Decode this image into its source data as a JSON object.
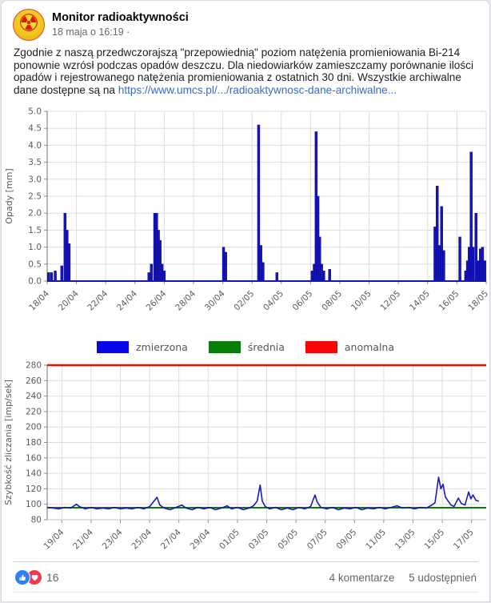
{
  "post": {
    "author": "Monitor radioaktywności",
    "timestamp": "18 maja o 16:19 ·",
    "body": "Zgodnie z naszą przedwczorajszą \"przepowiednią\" poziom natężenia promieniowania Bi-214 ponownie wzrósł podczas opadów deszczu. Dla niedowiarków zamieszczamy porównanie ilości opadów i rejestrowanego natężenia promieniowania z ostatnich 30 dni. Wszystkie archiwalne dane dostępne są na ",
    "link_text": "https://www.umcs.pl/.../radioaktywnosc-dane-archiwalne..."
  },
  "footer": {
    "reactions_count": "16",
    "comments_label": "4 komentarze",
    "shares_label": "5 udostępnień"
  },
  "icons": {
    "avatar_glyph": "☢"
  },
  "legend": {
    "items": [
      {
        "label": "zmierzona",
        "color": "#0606e8"
      },
      {
        "label": "średnia",
        "color": "#067d06"
      },
      {
        "label": "anomalna",
        "color": "#f80606"
      }
    ]
  },
  "chart_data": [
    {
      "type": "bar",
      "title": "",
      "xlabel": "",
      "ylabel": "Opady [mm]",
      "ylim": [
        0,
        5
      ],
      "ytick_labels": [
        "0.0",
        "0.5",
        "1.0",
        "1.5",
        "2.0",
        "2.5",
        "3.0",
        "3.5",
        "4.0",
        "4.5",
        "5.0"
      ],
      "xlim_days": [
        0,
        30
      ],
      "xticks": [
        {
          "d": 0,
          "l": "18/04"
        },
        {
          "d": 2,
          "l": "20/04"
        },
        {
          "d": 4,
          "l": "22/04"
        },
        {
          "d": 6,
          "l": "24/04"
        },
        {
          "d": 8,
          "l": "26/04"
        },
        {
          "d": 10,
          "l": "28/04"
        },
        {
          "d": 12,
          "l": "30/04"
        },
        {
          "d": 14,
          "l": "02/05"
        },
        {
          "d": 16,
          "l": "04/05"
        },
        {
          "d": 18,
          "l": "06/05"
        },
        {
          "d": 20,
          "l": "08/05"
        },
        {
          "d": 22,
          "l": "10/05"
        },
        {
          "d": 24,
          "l": "12/05"
        },
        {
          "d": 26,
          "l": "14/05"
        },
        {
          "d": 28,
          "l": "16/05"
        },
        {
          "d": 30,
          "l": "18/05"
        }
      ],
      "bar_color": "#1414b8",
      "grid": true,
      "bars": [
        [
          0.1,
          0.25
        ],
        [
          0.3,
          0.25
        ],
        [
          0.55,
          0.3
        ],
        [
          1.0,
          0.45
        ],
        [
          1.22,
          2.0
        ],
        [
          1.36,
          1.5
        ],
        [
          1.5,
          1.1
        ],
        [
          6.95,
          0.25
        ],
        [
          7.12,
          0.5
        ],
        [
          7.35,
          2.0
        ],
        [
          7.48,
          2.0
        ],
        [
          7.6,
          1.5
        ],
        [
          7.72,
          1.2
        ],
        [
          7.85,
          0.5
        ],
        [
          8.0,
          0.3
        ],
        [
          12.05,
          1.0
        ],
        [
          12.2,
          0.85
        ],
        [
          14.45,
          4.6
        ],
        [
          14.6,
          1.05
        ],
        [
          14.75,
          0.55
        ],
        [
          15.7,
          0.25
        ],
        [
          18.1,
          0.3
        ],
        [
          18.25,
          0.5
        ],
        [
          18.38,
          4.4
        ],
        [
          18.5,
          2.5
        ],
        [
          18.62,
          1.3
        ],
        [
          18.75,
          0.5
        ],
        [
          18.9,
          0.3
        ],
        [
          19.3,
          0.35
        ],
        [
          26.5,
          1.6
        ],
        [
          26.65,
          2.8
        ],
        [
          26.8,
          1.05
        ],
        [
          26.95,
          2.2
        ],
        [
          27.1,
          0.9
        ],
        [
          28.2,
          1.3
        ],
        [
          28.6,
          0.3
        ],
        [
          28.72,
          0.6
        ],
        [
          28.84,
          1.0
        ],
        [
          28.97,
          3.8
        ],
        [
          29.1,
          1.0
        ],
        [
          29.3,
          2.0
        ],
        [
          29.45,
          0.6
        ],
        [
          29.6,
          0.95
        ],
        [
          29.75,
          1.0
        ],
        [
          29.9,
          0.6
        ]
      ]
    },
    {
      "type": "line",
      "title": "",
      "xlabel": "",
      "ylabel": "Szybkość zliczania [imp/sek]",
      "ylim": [
        80,
        280
      ],
      "ytick_labels": [
        "80",
        "100",
        "120",
        "140",
        "160",
        "180",
        "200",
        "220",
        "240",
        "260",
        "280"
      ],
      "xlim_days": [
        0,
        30
      ],
      "xticks": [
        {
          "d": 1,
          "l": "19/04"
        },
        {
          "d": 3,
          "l": "21/04"
        },
        {
          "d": 5,
          "l": "23/04"
        },
        {
          "d": 7,
          "l": "25/04"
        },
        {
          "d": 9,
          "l": "27/04"
        },
        {
          "d": 11,
          "l": "29/04"
        },
        {
          "d": 13,
          "l": "01/05"
        },
        {
          "d": 15,
          "l": "03/05"
        },
        {
          "d": 17,
          "l": "05/05"
        },
        {
          "d": 19,
          "l": "07/05"
        },
        {
          "d": 21,
          "l": "09/05"
        },
        {
          "d": 23,
          "l": "11/05"
        },
        {
          "d": 25,
          "l": "13/05"
        },
        {
          "d": 27,
          "l": "15/05"
        },
        {
          "d": 29,
          "l": "17/05"
        }
      ],
      "grid": true,
      "series": [
        {
          "name": "anomalna",
          "color": "#f80606",
          "width": 2.4,
          "points": [
            [
              0,
              280
            ],
            [
              30,
              280
            ]
          ]
        },
        {
          "name": "średnia",
          "color": "#067d06",
          "width": 2.0,
          "points": [
            [
              0,
              95.5
            ],
            [
              30,
              95.5
            ]
          ]
        },
        {
          "name": "zmierzona",
          "color": "#1a1ab8",
          "width": 1.6,
          "points": [
            [
              0,
              96
            ],
            [
              0.4,
              95
            ],
            [
              0.8,
              94
            ],
            [
              1.2,
              96
            ],
            [
              1.6,
              95
            ],
            [
              2.0,
              100
            ],
            [
              2.2,
              97
            ],
            [
              2.6,
              94
            ],
            [
              3.0,
              96
            ],
            [
              3.4,
              94
            ],
            [
              3.8,
              95
            ],
            [
              4.2,
              94
            ],
            [
              4.6,
              96
            ],
            [
              5.0,
              94
            ],
            [
              5.4,
              95
            ],
            [
              5.8,
              94
            ],
            [
              6.2,
              96
            ],
            [
              6.6,
              94
            ],
            [
              7.0,
              97
            ],
            [
              7.3,
              104
            ],
            [
              7.5,
              109
            ],
            [
              7.7,
              99
            ],
            [
              8.0,
              95
            ],
            [
              8.4,
              93
            ],
            [
              8.8,
              96
            ],
            [
              9.2,
              99
            ],
            [
              9.5,
              95
            ],
            [
              9.9,
              93
            ],
            [
              10.3,
              96
            ],
            [
              10.7,
              94
            ],
            [
              11.1,
              96
            ],
            [
              11.5,
              93
            ],
            [
              11.9,
              95
            ],
            [
              12.3,
              98
            ],
            [
              12.6,
              94
            ],
            [
              13.0,
              96
            ],
            [
              13.4,
              93
            ],
            [
              13.8,
              95
            ],
            [
              14.1,
              98
            ],
            [
              14.35,
              104
            ],
            [
              14.55,
              125
            ],
            [
              14.7,
              104
            ],
            [
              14.9,
              97
            ],
            [
              15.2,
              94
            ],
            [
              15.6,
              96
            ],
            [
              16.0,
              93
            ],
            [
              16.4,
              95
            ],
            [
              16.8,
              93
            ],
            [
              17.2,
              96
            ],
            [
              17.6,
              94
            ],
            [
              18.0,
              97
            ],
            [
              18.3,
              112
            ],
            [
              18.45,
              103
            ],
            [
              18.7,
              96
            ],
            [
              19.1,
              94
            ],
            [
              19.5,
              96
            ],
            [
              19.9,
              93
            ],
            [
              20.3,
              95
            ],
            [
              20.7,
              94
            ],
            [
              21.1,
              96
            ],
            [
              21.5,
              93
            ],
            [
              21.9,
              95
            ],
            [
              22.3,
              94
            ],
            [
              22.7,
              96
            ],
            [
              23.1,
              94
            ],
            [
              23.5,
              96
            ],
            [
              23.9,
              98
            ],
            [
              24.3,
              95
            ],
            [
              24.7,
              96
            ],
            [
              25.1,
              94
            ],
            [
              25.5,
              96
            ],
            [
              25.9,
              95
            ],
            [
              26.2,
              98
            ],
            [
              26.5,
              102
            ],
            [
              26.75,
              135
            ],
            [
              26.9,
              120
            ],
            [
              27.05,
              126
            ],
            [
              27.2,
              110
            ],
            [
              27.4,
              104
            ],
            [
              27.6,
              99
            ],
            [
              27.8,
              97
            ],
            [
              28.1,
              108
            ],
            [
              28.3,
              101
            ],
            [
              28.55,
              99
            ],
            [
              28.8,
              116
            ],
            [
              28.95,
              107
            ],
            [
              29.1,
              112
            ],
            [
              29.3,
              105
            ],
            [
              29.5,
              104
            ]
          ]
        }
      ]
    }
  ]
}
